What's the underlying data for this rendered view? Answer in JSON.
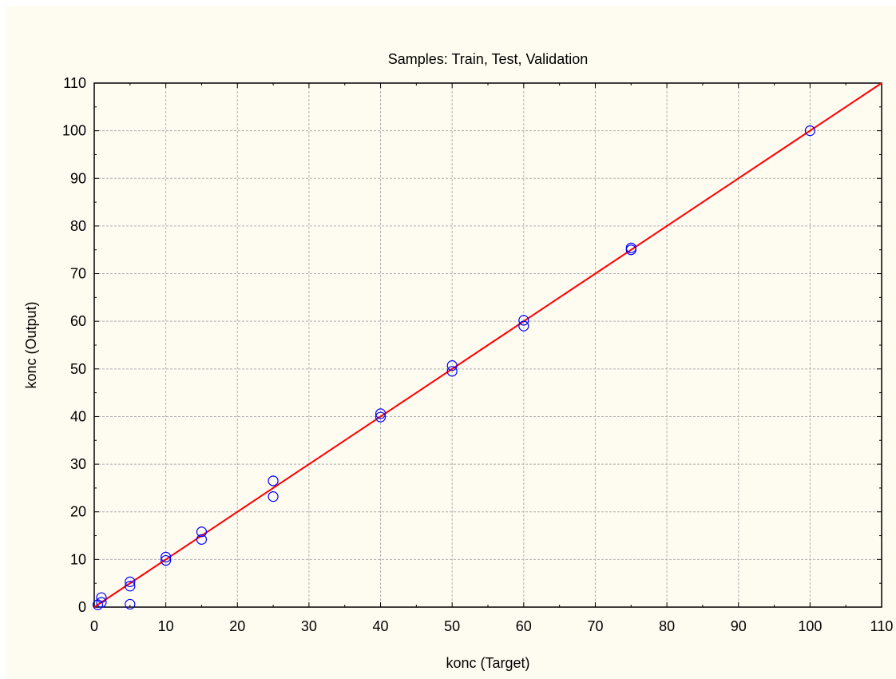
{
  "chart_data": {
    "type": "scatter",
    "title": "Samples: Train, Test, Validation",
    "xlabel": "konc (Target)",
    "ylabel": "konc (Output)",
    "xlim": [
      0,
      110
    ],
    "ylim": [
      0,
      110
    ],
    "xticks": [
      0,
      10,
      20,
      30,
      40,
      50,
      60,
      70,
      80,
      90,
      100,
      110
    ],
    "yticks": [
      0,
      10,
      20,
      30,
      40,
      50,
      60,
      70,
      80,
      90,
      100,
      110
    ],
    "grid": true,
    "fit_line": {
      "from": [
        0,
        0
      ],
      "to": [
        110,
        110
      ]
    },
    "colors": {
      "points": "#0000ff",
      "line": "#ff0000",
      "grid": "#b0b0b0",
      "background": "#fefbf0"
    },
    "series": [
      {
        "points": [
          {
            "x": 0.5,
            "y": 0.5
          },
          {
            "x": 1,
            "y": 1.0
          },
          {
            "x": 1,
            "y": 2.0
          },
          {
            "x": 5,
            "y": 0.6
          },
          {
            "x": 5,
            "y": 4.4
          },
          {
            "x": 5,
            "y": 5.3
          },
          {
            "x": 10,
            "y": 9.8
          },
          {
            "x": 10,
            "y": 10.5
          },
          {
            "x": 15,
            "y": 14.2
          },
          {
            "x": 15,
            "y": 15.8
          },
          {
            "x": 25,
            "y": 23.2
          },
          {
            "x": 25,
            "y": 26.5
          },
          {
            "x": 40,
            "y": 39.9
          },
          {
            "x": 40,
            "y": 40.6
          },
          {
            "x": 50,
            "y": 49.5
          },
          {
            "x": 50,
            "y": 50.7
          },
          {
            "x": 60,
            "y": 59.0
          },
          {
            "x": 60,
            "y": 60.2
          },
          {
            "x": 75,
            "y": 75.0
          },
          {
            "x": 75,
            "y": 75.4
          },
          {
            "x": 100,
            "y": 100.0
          }
        ]
      }
    ]
  }
}
